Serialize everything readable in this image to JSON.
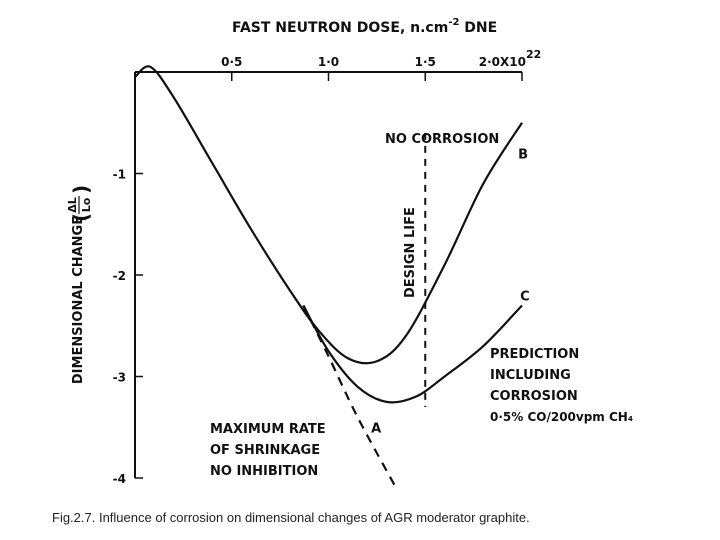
{
  "chart_data": {
    "type": "line",
    "title": "",
    "xlabel": "FAST NEUTRON DOSE, n.cm",
    "xlabel_sup": "-2",
    "xlabel_suffix": " DNE",
    "ylabel": "DIMENSIONAL CHANGE",
    "ylabel_frac_num": "ΔL",
    "ylabel_frac_den": "Lo",
    "xlim": [
      0,
      2.0
    ],
    "ylim": [
      -4,
      0
    ],
    "x_ticks": [
      0.5,
      1.0,
      1.5,
      2.0
    ],
    "x_tick_labels": [
      "0·5",
      "1·0",
      "1·5",
      "2·0X10"
    ],
    "x_last_sup": "22",
    "y_ticks": [
      -1,
      -2,
      -3,
      -4
    ],
    "y_tick_labels": [
      "-1",
      "-2",
      "-3",
      "-4"
    ],
    "grid": false,
    "series": [
      {
        "name": "A",
        "style": "dashed",
        "points": [
          [
            0.87,
            -2.3
          ],
          [
            1.0,
            -2.8
          ],
          [
            1.15,
            -3.4
          ],
          [
            1.35,
            -4.1
          ]
        ]
      },
      {
        "name": "B",
        "style": "solid",
        "points": [
          [
            0.0,
            -0.05
          ],
          [
            0.08,
            0.05
          ],
          [
            0.2,
            -0.25
          ],
          [
            0.4,
            -0.9
          ],
          [
            0.6,
            -1.55
          ],
          [
            0.8,
            -2.15
          ],
          [
            0.95,
            -2.55
          ],
          [
            1.1,
            -2.82
          ],
          [
            1.25,
            -2.85
          ],
          [
            1.4,
            -2.6
          ],
          [
            1.6,
            -1.9
          ],
          [
            1.8,
            -1.1
          ],
          [
            2.0,
            -0.5
          ]
        ]
      },
      {
        "name": "C",
        "style": "solid",
        "points": [
          [
            0.87,
            -2.3
          ],
          [
            1.0,
            -2.75
          ],
          [
            1.15,
            -3.1
          ],
          [
            1.3,
            -3.25
          ],
          [
            1.45,
            -3.2
          ],
          [
            1.6,
            -3.0
          ],
          [
            1.8,
            -2.7
          ],
          [
            2.0,
            -2.3
          ]
        ]
      }
    ],
    "design_life": {
      "x": 1.5,
      "label": "DESIGN LIFE"
    },
    "annotations": {
      "no_corrosion": "NO CORROSION",
      "prediction": [
        "PREDICTION",
        "INCLUDING",
        "CORROSION",
        "0·5% CO/200vpm CH₄"
      ],
      "max_rate": [
        "MAXIMUM RATE",
        "OF SHRINKAGE",
        "NO INHIBITION"
      ]
    }
  },
  "caption": "Fig.2.7. Influence of corrosion on dimensional changes of AGR moderator graphite."
}
